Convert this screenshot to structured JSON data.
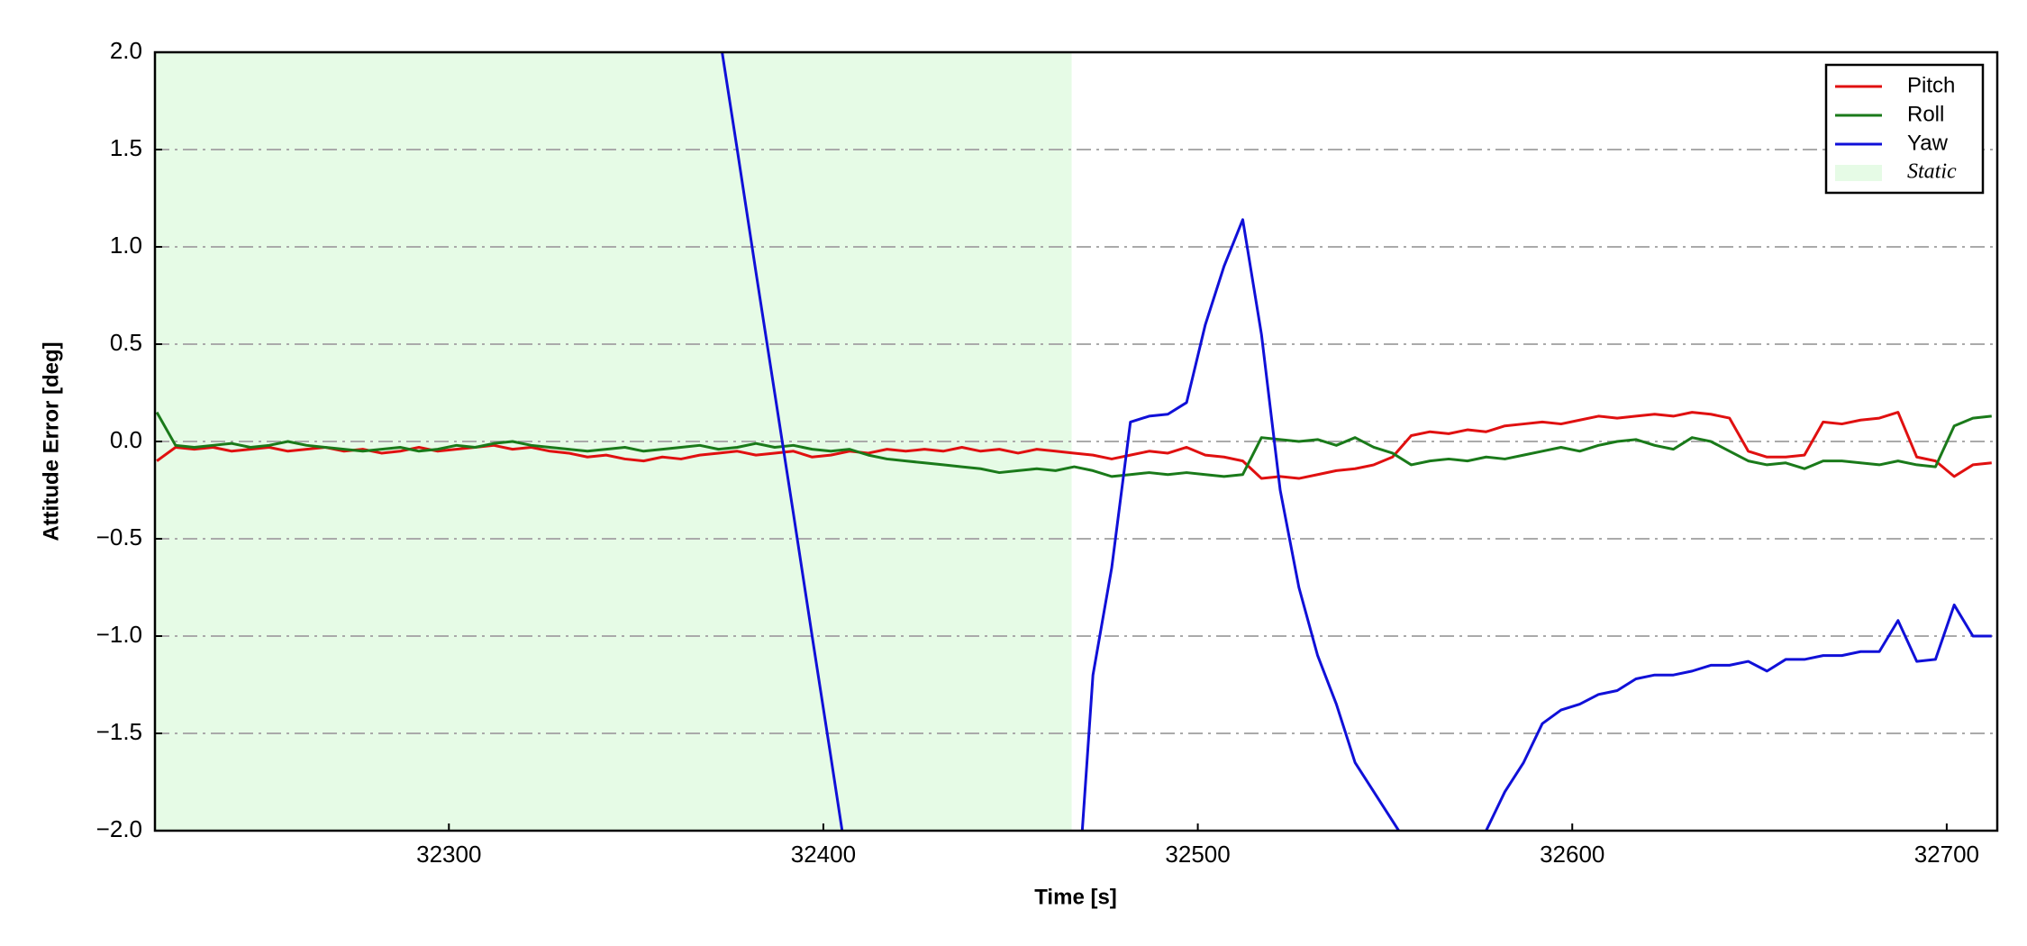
{
  "chart_data": {
    "type": "line",
    "x_label": "Time [s]",
    "y_label": "Attitude Error [deg]",
    "xlim": [
      32221.5,
      32713.5
    ],
    "ylim": [
      -2,
      2
    ],
    "xticks": [
      32300,
      32400,
      32500,
      32600,
      32700
    ],
    "yticks": [
      {
        "value": -2,
        "label": "−2.0"
      },
      {
        "value": -1.5,
        "label": "−1.5"
      },
      {
        "value": -1,
        "label": "−1.0"
      },
      {
        "value": -0.5,
        "label": "−0.5"
      },
      {
        "value": 0,
        "label": "0.0"
      },
      0.5,
      {
        "value": 1,
        "label": "1.0"
      },
      1.5,
      {
        "value": 2,
        "label": "2.0"
      }
    ],
    "grid": true,
    "legend": "upper right",
    "span": {
      "name": "Static",
      "start": 32221.5,
      "end": 32466.3,
      "color": "#e6fbe6"
    },
    "x": [
      32222,
      32227,
      32232,
      32237,
      32242,
      32247,
      32252,
      32257,
      32262,
      32267,
      32272,
      32277,
      32282,
      32287,
      32292,
      32297,
      32302,
      32307,
      32312,
      32317,
      32322,
      32327,
      32332,
      32337,
      32342,
      32347,
      32352,
      32357,
      32362,
      32367,
      32372,
      32377,
      32382,
      32387,
      32392,
      32397,
      32402,
      32407,
      32412,
      32417,
      32422,
      32427,
      32432,
      32437,
      32442,
      32447,
      32452,
      32457,
      32462,
      32467,
      32472,
      32477,
      32482,
      32487,
      32492,
      32497,
      32502,
      32507,
      32512,
      32517,
      32522,
      32527,
      32532,
      32537,
      32542,
      32547,
      32552,
      32557,
      32562,
      32567,
      32572,
      32577,
      32582,
      32587,
      32592,
      32597,
      32602,
      32607,
      32612,
      32617,
      32622,
      32627,
      32632,
      32637,
      32642,
      32647,
      32652,
      32657,
      32662,
      32667,
      32672,
      32677,
      32682,
      32687,
      32692,
      32697,
      32702,
      32707,
      32712
    ],
    "series": [
      {
        "name": "Pitch",
        "color": "#e01010",
        "values": [
          -0.1,
          -0.03,
          -0.04,
          -0.03,
          -0.05,
          -0.04,
          -0.03,
          -0.05,
          -0.04,
          -0.03,
          -0.05,
          -0.04,
          -0.06,
          -0.05,
          -0.03,
          -0.05,
          -0.04,
          -0.03,
          -0.02,
          -0.04,
          -0.03,
          -0.05,
          -0.06,
          -0.08,
          -0.07,
          -0.09,
          -0.1,
          -0.08,
          -0.09,
          -0.07,
          -0.06,
          -0.05,
          -0.07,
          -0.06,
          -0.05,
          -0.08,
          -0.07,
          -0.05,
          -0.06,
          -0.04,
          -0.05,
          -0.04,
          -0.05,
          -0.03,
          -0.05,
          -0.04,
          -0.06,
          -0.04,
          -0.05,
          -0.06,
          -0.07,
          -0.09,
          -0.07,
          -0.05,
          -0.06,
          -0.03,
          -0.07,
          -0.08,
          -0.1,
          -0.19,
          -0.18,
          -0.19,
          -0.17,
          -0.15,
          -0.14,
          -0.12,
          -0.08,
          0.03,
          0.05,
          0.04,
          0.06,
          0.05,
          0.08,
          0.09,
          0.1,
          0.09,
          0.11,
          0.13,
          0.12,
          0.13,
          0.14,
          0.13,
          0.15,
          0.14,
          0.12,
          -0.05,
          -0.08,
          -0.08,
          -0.07,
          0.1,
          0.09,
          0.11,
          0.12,
          0.15,
          -0.08,
          -0.1,
          -0.18,
          -0.12,
          -0.11
        ]
      },
      {
        "name": "Roll",
        "color": "#1a7a1a",
        "values": [
          0.15,
          -0.02,
          -0.03,
          -0.02,
          -0.01,
          -0.03,
          -0.02,
          0.0,
          -0.02,
          -0.03,
          -0.04,
          -0.05,
          -0.04,
          -0.03,
          -0.05,
          -0.04,
          -0.02,
          -0.03,
          -0.01,
          0.0,
          -0.02,
          -0.03,
          -0.04,
          -0.05,
          -0.04,
          -0.03,
          -0.05,
          -0.04,
          -0.03,
          -0.02,
          -0.04,
          -0.03,
          -0.01,
          -0.03,
          -0.02,
          -0.04,
          -0.05,
          -0.04,
          -0.07,
          -0.09,
          -0.1,
          -0.11,
          -0.12,
          -0.13,
          -0.14,
          -0.16,
          -0.15,
          -0.14,
          -0.15,
          -0.13,
          -0.15,
          -0.18,
          -0.17,
          -0.16,
          -0.17,
          -0.16,
          -0.17,
          -0.18,
          -0.17,
          0.02,
          0.01,
          0.0,
          0.01,
          -0.02,
          0.02,
          -0.03,
          -0.06,
          -0.12,
          -0.1,
          -0.09,
          -0.1,
          -0.08,
          -0.09,
          -0.07,
          -0.05,
          -0.03,
          -0.05,
          -0.02,
          0.0,
          0.01,
          -0.02,
          -0.04,
          0.02,
          0.0,
          -0.05,
          -0.1,
          -0.12,
          -0.11,
          -0.14,
          -0.1,
          -0.1,
          -0.11,
          -0.12,
          -0.1,
          -0.12,
          -0.13,
          0.08,
          0.12,
          0.13
        ]
      },
      {
        "name": "Yaw",
        "color": "#1010d8",
        "values": [
          null,
          null,
          null,
          null,
          null,
          null,
          null,
          null,
          null,
          null,
          null,
          null,
          null,
          null,
          null,
          null,
          null,
          null,
          null,
          null,
          null,
          null,
          null,
          null,
          null,
          null,
          null,
          null,
          null,
          null,
          2.12,
          1.5,
          0.87,
          0.25,
          -0.37,
          -1.0,
          -1.62,
          -2.25,
          null,
          null,
          null,
          null,
          null,
          null,
          null,
          null,
          null,
          null,
          null,
          -2.6,
          -1.2,
          -0.65,
          0.1,
          0.13,
          0.14,
          0.2,
          0.6,
          0.9,
          1.14,
          0.55,
          -0.25,
          -0.75,
          -1.1,
          -1.35,
          -1.65,
          -1.8,
          -1.95,
          -2.1,
          null,
          null,
          null,
          -2.0,
          -1.8,
          -1.65,
          -1.45,
          -1.38,
          -1.35,
          -1.3,
          -1.28,
          -1.22,
          -1.2,
          -1.2,
          -1.18,
          -1.15,
          -1.15,
          -1.13,
          -1.18,
          -1.12,
          -1.12,
          -1.1,
          -1.1,
          -1.08,
          -1.08,
          -0.92,
          -1.13,
          -1.12,
          -0.84,
          -1.0,
          -1.0
        ]
      }
    ]
  }
}
